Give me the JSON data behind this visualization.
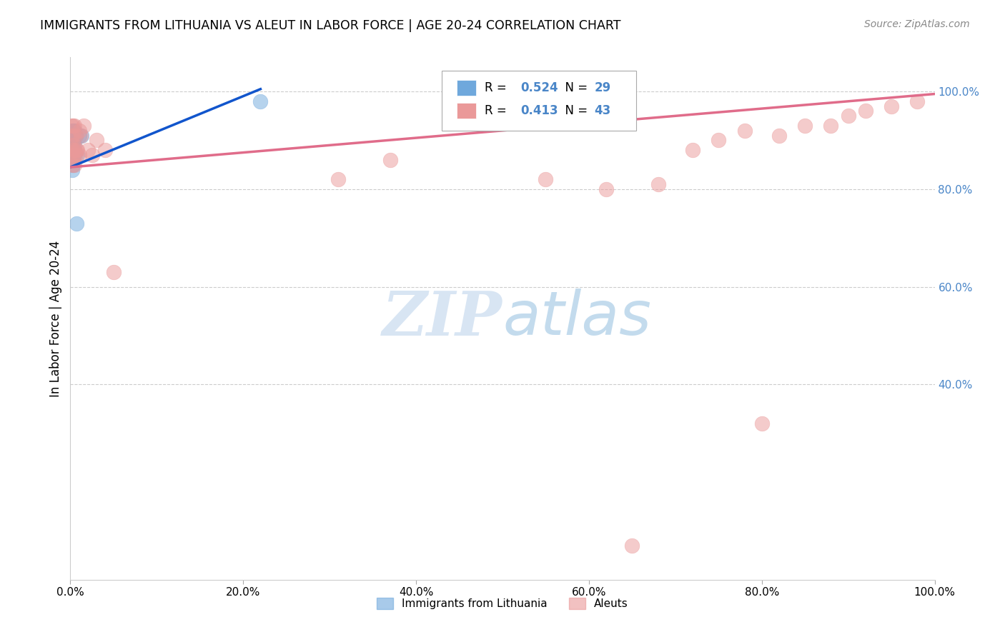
{
  "title": "IMMIGRANTS FROM LITHUANIA VS ALEUT IN LABOR FORCE | AGE 20-24 CORRELATION CHART",
  "source": "Source: ZipAtlas.com",
  "ylabel": "In Labor Force | Age 20-24",
  "legend_bottom": [
    "Immigrants from Lithuania",
    "Aleuts"
  ],
  "blue_R": "0.524",
  "blue_N": "29",
  "pink_R": "0.413",
  "pink_N": "43",
  "blue_color": "#6fa8dc",
  "pink_color": "#ea9999",
  "blue_line_color": "#1155cc",
  "pink_line_color": "#e06c8a",
  "right_axis_color": "#4a86c8",
  "watermark_zip": "ZIP",
  "watermark_atlas": "atlas",
  "xlim": [
    0,
    1.0
  ],
  "ylim": [
    0,
    1.07
  ],
  "ytick_vals": [
    0.4,
    0.6,
    0.8,
    1.0
  ],
  "xtick_vals": [
    0.0,
    0.2,
    0.4,
    0.6,
    0.8,
    1.0
  ],
  "blue_x": [
    0.001,
    0.001,
    0.001,
    0.001,
    0.002,
    0.002,
    0.002,
    0.002,
    0.002,
    0.003,
    0.003,
    0.003,
    0.003,
    0.003,
    0.003,
    0.003,
    0.003,
    0.004,
    0.004,
    0.004,
    0.005,
    0.005,
    0.005,
    0.006,
    0.007,
    0.008,
    0.01,
    0.013,
    0.22
  ],
  "blue_y": [
    0.86,
    0.88,
    0.9,
    0.91,
    0.84,
    0.87,
    0.88,
    0.9,
    0.92,
    0.85,
    0.86,
    0.87,
    0.88,
    0.89,
    0.9,
    0.91,
    0.92,
    0.88,
    0.9,
    0.92,
    0.87,
    0.89,
    0.92,
    0.91,
    0.73,
    0.87,
    0.91,
    0.91,
    0.98
  ],
  "pink_x": [
    0.001,
    0.001,
    0.002,
    0.002,
    0.003,
    0.003,
    0.003,
    0.004,
    0.004,
    0.004,
    0.005,
    0.005,
    0.005,
    0.006,
    0.006,
    0.007,
    0.008,
    0.01,
    0.01,
    0.012,
    0.015,
    0.02,
    0.025,
    0.03,
    0.04,
    0.05,
    0.31,
    0.37,
    0.55,
    0.62,
    0.65,
    0.68,
    0.72,
    0.75,
    0.78,
    0.8,
    0.82,
    0.85,
    0.88,
    0.9,
    0.92,
    0.95,
    0.98
  ],
  "pink_y": [
    0.88,
    0.93,
    0.85,
    0.91,
    0.87,
    0.88,
    0.93,
    0.86,
    0.89,
    0.91,
    0.85,
    0.88,
    0.93,
    0.87,
    0.91,
    0.88,
    0.88,
    0.87,
    0.92,
    0.91,
    0.93,
    0.88,
    0.87,
    0.9,
    0.88,
    0.63,
    0.82,
    0.86,
    0.82,
    0.8,
    0.07,
    0.81,
    0.88,
    0.9,
    0.92,
    0.32,
    0.91,
    0.93,
    0.93,
    0.95,
    0.96,
    0.97,
    0.98
  ],
  "blue_line_x": [
    0.0,
    0.22
  ],
  "blue_line_y_start": 0.845,
  "blue_line_y_end": 1.005,
  "pink_line_x": [
    0.0,
    1.0
  ],
  "pink_line_y_start": 0.845,
  "pink_line_y_end": 0.995
}
